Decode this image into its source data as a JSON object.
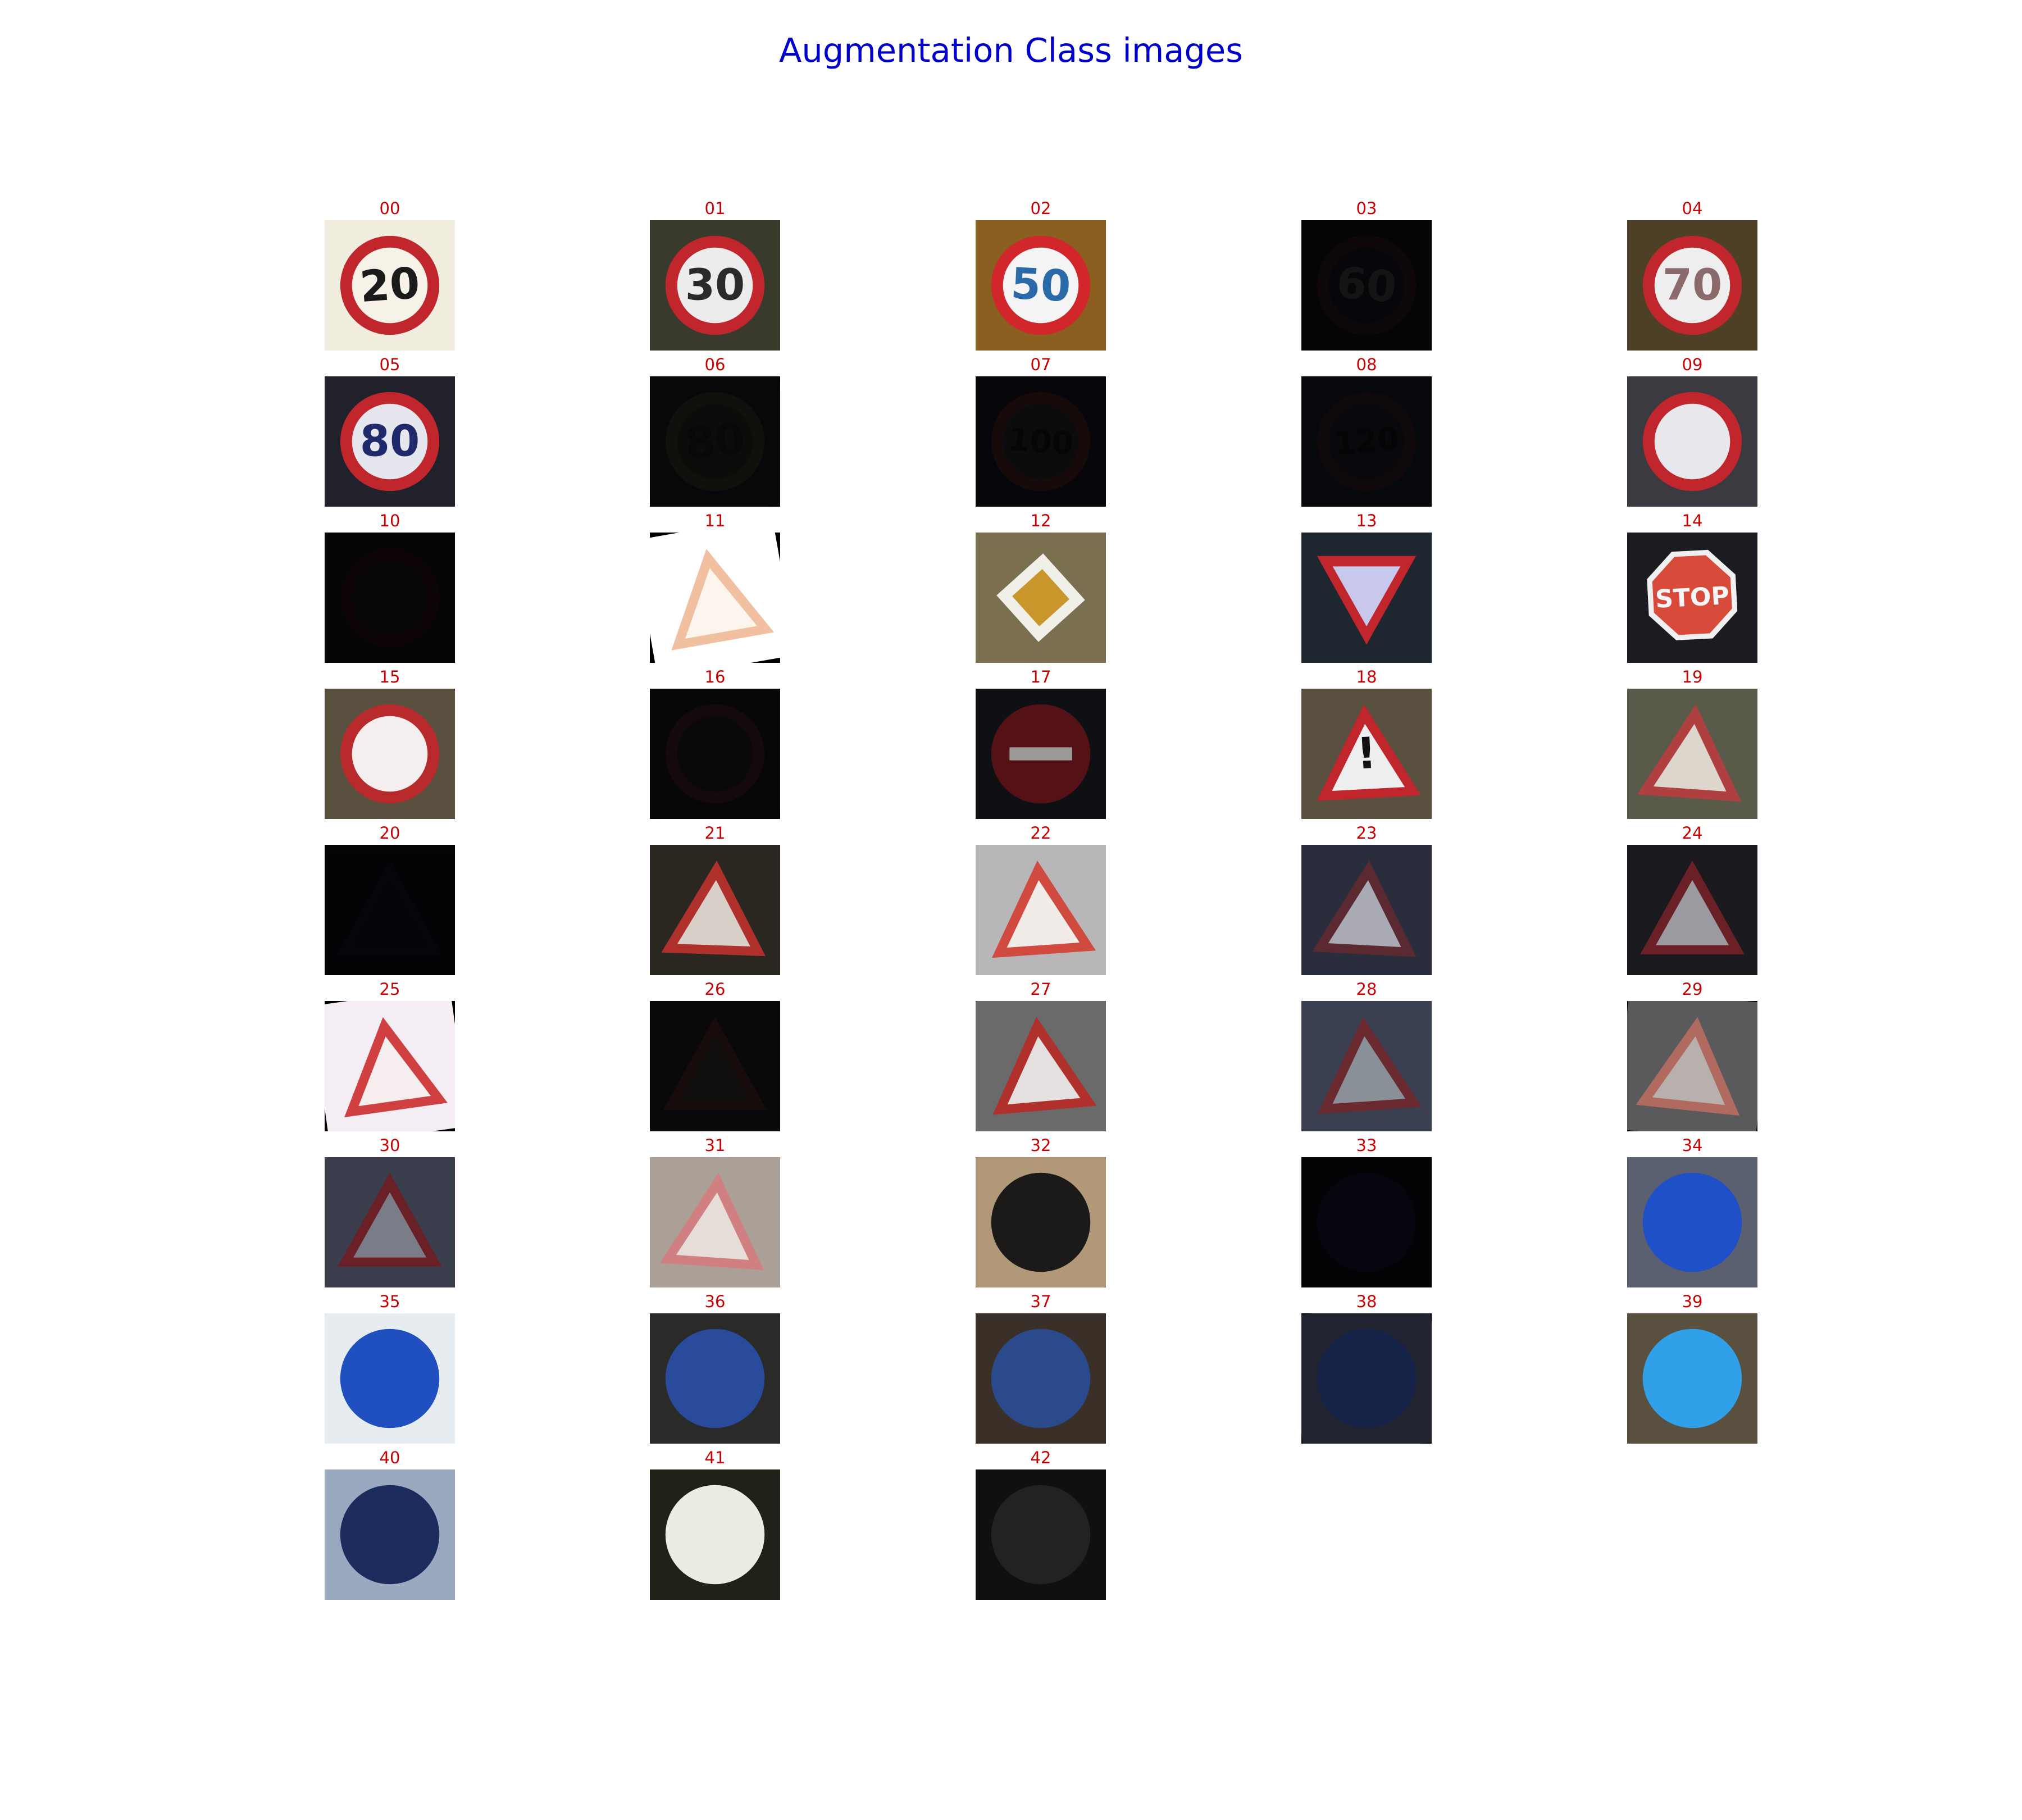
{
  "figure": {
    "title": "Augmentation Class images",
    "title_color": "#0000cc",
    "label_color": "#cc0000",
    "columns": 5
  },
  "cells": [
    {
      "label": "00",
      "bg": "#f2eedf",
      "sign": "circle",
      "fg": "#c0262c",
      "inner": "#f6f2e8",
      "text": "20",
      "text_color": "#1b1b1b",
      "bright": 1.0,
      "rot": -4
    },
    {
      "label": "01",
      "bg": "#3a3a2c",
      "sign": "circle",
      "fg": "#c0262c",
      "inner": "#ececec",
      "text": "30",
      "text_color": "#2a2a2a",
      "bright": 1.0,
      "rot": 0
    },
    {
      "label": "02",
      "bg": "#8a5f20",
      "sign": "circle",
      "fg": "#d0262c",
      "inner": "#f4f4f4",
      "text": "50",
      "text_color": "#2a6aa8",
      "bright": 1.0,
      "rot": 3
    },
    {
      "label": "03",
      "bg": "#0f1018",
      "sign": "circle",
      "fg": "#2a1820",
      "inner": "#161620",
      "text": "60",
      "text_color": "#3a3a3a",
      "bright": 0.35,
      "rot": 5
    },
    {
      "label": "04",
      "bg": "#4d4026",
      "sign": "circle",
      "fg": "#c0262c",
      "inner": "#eeeeee",
      "text": "70",
      "text_color": "#8a6a6a",
      "bright": 1.0,
      "rot": 0
    },
    {
      "label": "05",
      "bg": "#20212a",
      "sign": "circle",
      "fg": "#c0262c",
      "inner": "#e6e6ee",
      "text": "80",
      "text_color": "#1f2a6a",
      "bright": 1.0,
      "rot": 0
    },
    {
      "label": "06",
      "bg": "#14131a",
      "sign": "circle",
      "fg": "#2e2822",
      "inner": "#242019",
      "text": "80",
      "text_color": "#151515",
      "bright": 0.4,
      "rot": -6
    },
    {
      "label": "07",
      "bg": "#12131c",
      "sign": "circle",
      "fg": "#3a1a1c",
      "inner": "#1e1e24",
      "text": "100",
      "text_color": "#101010",
      "bright": 0.4,
      "rot": 4
    },
    {
      "label": "08",
      "bg": "#141722",
      "sign": "circle",
      "fg": "#301a22",
      "inner": "#1a1c26",
      "text": "120",
      "text_color": "#101010",
      "bright": 0.35,
      "rot": -5
    },
    {
      "label": "09",
      "bg": "#3a3a40",
      "sign": "circle",
      "fg": "#c0262c",
      "inner": "#e8e8ec",
      "text": "",
      "text_color": "#111111",
      "bright": 1.0,
      "rot": 2
    },
    {
      "label": "10",
      "bg": "#12121a",
      "sign": "circle",
      "fg": "#2a1016",
      "inner": "#151520",
      "text": "",
      "text_color": "#111111",
      "bright": 0.3,
      "rot": 0
    },
    {
      "label": "11",
      "bg": "#ffffff",
      "sign": "triangle",
      "fg": "#f0c0a0",
      "inner": "#fbf5ee",
      "text": "",
      "text_color": "#cc88aa",
      "bright": 1.0,
      "rot": -10
    },
    {
      "label": "12",
      "bg": "#7a7050",
      "sign": "diamond",
      "fg": "#f0f0e8",
      "inner": "#c8962a",
      "text": "",
      "text_color": "#000000",
      "bright": 1.0,
      "rot": 3
    },
    {
      "label": "13",
      "bg": "#1e2630",
      "sign": "yield",
      "fg": "#c0262c",
      "inner": "#c8c8ec",
      "text": "",
      "text_color": "#000000",
      "bright": 1.0,
      "rot": 0
    },
    {
      "label": "14",
      "bg": "#1a1c22",
      "sign": "octagon",
      "fg": "#d84a3a",
      "inner": "#d84a3a",
      "text": "STOP",
      "text_color": "#f6f6f6",
      "bright": 1.0,
      "rot": -3
    },
    {
      "label": "15",
      "bg": "#5a5040",
      "sign": "circle",
      "fg": "#b82a2c",
      "inner": "#f4eeee",
      "text": "",
      "text_color": "#000000",
      "bright": 1.0,
      "rot": -5
    },
    {
      "label": "16",
      "bg": "#15141a",
      "sign": "circle",
      "fg": "#3a1a20",
      "inner": "#1c1a22",
      "text": "",
      "text_color": "#000000",
      "bright": 0.35,
      "rot": 6
    },
    {
      "label": "17",
      "bg": "#16171d",
      "sign": "noentry",
      "fg": "#7a1a20",
      "inner": "#7a1a20",
      "text": "",
      "text_color": "#000000",
      "bright": 0.7,
      "rot": 0
    },
    {
      "label": "18",
      "bg": "#5a5040",
      "sign": "triangle",
      "fg": "#c0262c",
      "inner": "#eeeeee",
      "text": "!",
      "text_color": "#111111",
      "bright": 1.0,
      "rot": -3
    },
    {
      "label": "19",
      "bg": "#5a5a4a",
      "sign": "triangle",
      "fg": "#b04040",
      "inner": "#ddd6cc",
      "text": "",
      "text_color": "#222222",
      "bright": 1.0,
      "rot": 4
    },
    {
      "label": "20",
      "bg": "#0c0e16",
      "sign": "triangle",
      "fg": "#151a2c",
      "inner": "#101420",
      "text": "",
      "text_color": "#000000",
      "bright": 0.25,
      "rot": 0
    },
    {
      "label": "21",
      "bg": "#2a2620",
      "sign": "triangle",
      "fg": "#b0302c",
      "inner": "#d8d0c8",
      "text": "",
      "text_color": "#111111",
      "bright": 1.0,
      "rot": 2
    },
    {
      "label": "22",
      "bg": "#b8b6b8",
      "sign": "triangle",
      "fg": "#d04a40",
      "inner": "#f2ece8",
      "text": "",
      "text_color": "#333333",
      "bright": 1.0,
      "rot": -4
    },
    {
      "label": "23",
      "bg": "#2a2e3c",
      "sign": "triangle",
      "fg": "#5a2a30",
      "inner": "#aaaab4",
      "text": "",
      "text_color": "#222222",
      "bright": 1.0,
      "rot": 3
    },
    {
      "label": "24",
      "bg": "#1a1a1e",
      "sign": "triangle",
      "fg": "#6a2026",
      "inner": "#9a9aa0",
      "text": "",
      "text_color": "#222222",
      "bright": 1.0,
      "rot": 0
    },
    {
      "label": "25",
      "bg": "#f4eef4",
      "sign": "triangle",
      "fg": "#d04040",
      "inner": "#f6eeee",
      "text": "",
      "text_color": "#444444",
      "bright": 1.0,
      "rot": -8
    },
    {
      "label": "26",
      "bg": "#18161a",
      "sign": "triangle",
      "fg": "#3a1c1c",
      "inner": "#2a2624",
      "text": "",
      "text_color": "#111111",
      "bright": 0.4,
      "rot": 0
    },
    {
      "label": "27",
      "bg": "#6a6a6a",
      "sign": "triangle",
      "fg": "#b0302c",
      "inner": "#e4e0e0",
      "text": "",
      "text_color": "#111111",
      "bright": 1.0,
      "rot": -5
    },
    {
      "label": "28",
      "bg": "#3a4050",
      "sign": "triangle",
      "fg": "#6a2a30",
      "inner": "#8a9098",
      "text": "",
      "text_color": "#222222",
      "bright": 1.0,
      "rot": -4
    },
    {
      "label": "29",
      "bg": "#5a5a5c",
      "sign": "triangle",
      "fg": "#b06a60",
      "inner": "#b8b0ac",
      "text": "",
      "text_color": "#555555",
      "bright": 1.0,
      "rot": 6
    },
    {
      "label": "30",
      "bg": "#3a3e4c",
      "sign": "triangle",
      "fg": "#6a2026",
      "inner": "#7a7c88",
      "text": "",
      "text_color": "#222222",
      "bright": 1.0,
      "rot": 0
    },
    {
      "label": "31",
      "bg": "#aaa098",
      "sign": "triangle",
      "fg": "#d08080",
      "inner": "#e6dcd8",
      "text": "",
      "text_color": "#666666",
      "bright": 1.0,
      "rot": 4
    },
    {
      "label": "32",
      "bg": "#b09878",
      "sign": "circle",
      "fg": "#1c1a18",
      "inner": "#1c1a18",
      "text": "",
      "text_color": "#000000",
      "bright": 1.0,
      "rot": -5
    },
    {
      "label": "33",
      "bg": "#0c0c12",
      "sign": "circle",
      "fg": "#141a2e",
      "inner": "#141a2e",
      "text": "",
      "text_color": "#000000",
      "bright": 0.3,
      "rot": 0
    },
    {
      "label": "34",
      "bg": "#5a6070",
      "sign": "circle",
      "fg": "#2050c8",
      "inner": "#2050c8",
      "text": "",
      "text_color": "#ffffff",
      "bright": 1.0,
      "rot": 0
    },
    {
      "label": "35",
      "bg": "#e6ecf0",
      "sign": "circle",
      "fg": "#2050c0",
      "inner": "#2050c0",
      "text": "",
      "text_color": "#ffffff",
      "bright": 1.0,
      "rot": 3
    },
    {
      "label": "36",
      "bg": "#2a2a28",
      "sign": "circle",
      "fg": "#2a4a9c",
      "inner": "#2a4a9c",
      "text": "",
      "text_color": "#ffffff",
      "bright": 1.0,
      "rot": 0
    },
    {
      "label": "37",
      "bg": "#3a3028",
      "sign": "circle",
      "fg": "#2a4a8c",
      "inner": "#2a4a8c",
      "text": "",
      "text_color": "#ffffff",
      "bright": 1.0,
      "rot": 5
    },
    {
      "label": "38",
      "bg": "#2a2e3c",
      "sign": "circle",
      "fg": "#1c2c5c",
      "inner": "#1c2c5c",
      "text": "",
      "text_color": "#ffffff",
      "bright": 0.8,
      "rot": -6
    },
    {
      "label": "39",
      "bg": "#5a5040",
      "sign": "circle",
      "fg": "#30a0e8",
      "inner": "#30a0e8",
      "text": "",
      "text_color": "#ffffff",
      "bright": 1.0,
      "rot": 4
    },
    {
      "label": "40",
      "bg": "#9aa8c0",
      "sign": "circle",
      "fg": "#1c2c5c",
      "inner": "#1c2c5c",
      "text": "",
      "text_color": "#ffffff",
      "bright": 1.0,
      "rot": -3
    },
    {
      "label": "41",
      "bg": "#1e2218",
      "sign": "circle",
      "fg": "#ecece4",
      "inner": "#ecece4",
      "text": "",
      "text_color": "#000000",
      "bright": 1.0,
      "rot": 0
    },
    {
      "label": "42",
      "bg": "#1e1c1a",
      "sign": "circle",
      "fg": "#3c3a36",
      "inner": "#3c3a36",
      "text": "",
      "text_color": "#000000",
      "bright": 0.6,
      "rot": 0
    }
  ]
}
